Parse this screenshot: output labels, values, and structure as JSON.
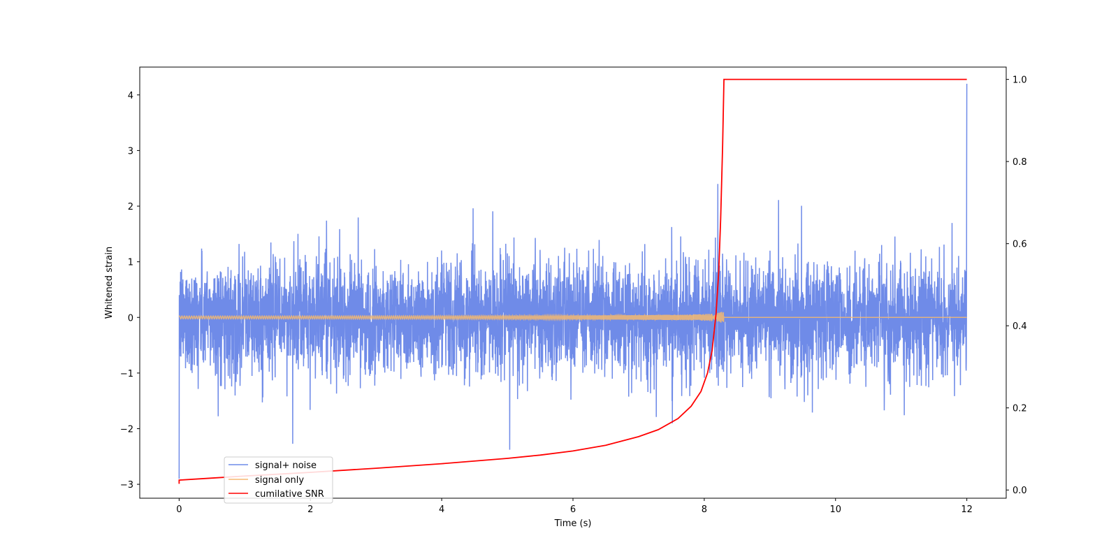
{
  "chart_data": {
    "type": "line",
    "title": "",
    "xlabel": "Time (s)",
    "ylabel": "Whitened strain",
    "ylabel_right": "",
    "xlim": [
      -0.6,
      12.6
    ],
    "ylim": [
      -3.25,
      4.5
    ],
    "y2lim": [
      -0.02,
      1.03
    ],
    "xticks": [
      0,
      2,
      4,
      6,
      8,
      10,
      12
    ],
    "yticks": [
      -3,
      -2,
      -1,
      0,
      1,
      2,
      3,
      4
    ],
    "y2ticks": [
      0.0,
      0.2,
      0.4,
      0.6,
      0.8,
      1.0
    ],
    "xtick_labels": [
      "0",
      "2",
      "4",
      "6",
      "8",
      "10",
      "12"
    ],
    "ytick_labels": [
      "−3",
      "−2",
      "−1",
      "0",
      "1",
      "2",
      "3",
      "4"
    ],
    "y2tick_labels": [
      "0.0",
      "0.2",
      "0.4",
      "0.6",
      "0.8",
      "1.0"
    ],
    "grid": false,
    "legend_position": "lower-left",
    "series": [
      {
        "name": "signal+ noise",
        "axis": "left",
        "color": "#6f8be8",
        "style": "noise",
        "x_range": [
          0,
          12
        ],
        "envelope_typical": 1.0,
        "envelope_peak": [
          -2.5,
          2.4
        ],
        "edge_values": {
          "start_min": -2.9,
          "end_max": 4.2
        }
      },
      {
        "name": "signal only",
        "axis": "left",
        "color": "#f5b870",
        "style": "chirp",
        "x_range": [
          0,
          12
        ],
        "chirp_end": 8.3,
        "chirp_peak_amplitude": 0.28
      },
      {
        "name": "cumilative SNR",
        "axis": "right",
        "color": "#ff0000",
        "style": "line",
        "x": [
          0,
          0.5,
          1,
          2,
          3,
          4,
          5,
          5.5,
          6,
          6.5,
          7,
          7.3,
          7.6,
          7.8,
          7.95,
          8.05,
          8.12,
          8.18,
          8.22,
          8.25,
          8.28,
          8.3,
          9,
          10,
          11,
          12
        ],
        "values": [
          0.024,
          0.029,
          0.034,
          0.043,
          0.053,
          0.064,
          0.077,
          0.085,
          0.095,
          0.109,
          0.13,
          0.147,
          0.174,
          0.204,
          0.24,
          0.285,
          0.34,
          0.43,
          0.53,
          0.66,
          0.84,
          1.0,
          1.0,
          1.0,
          1.0,
          1.0
        ]
      }
    ]
  }
}
